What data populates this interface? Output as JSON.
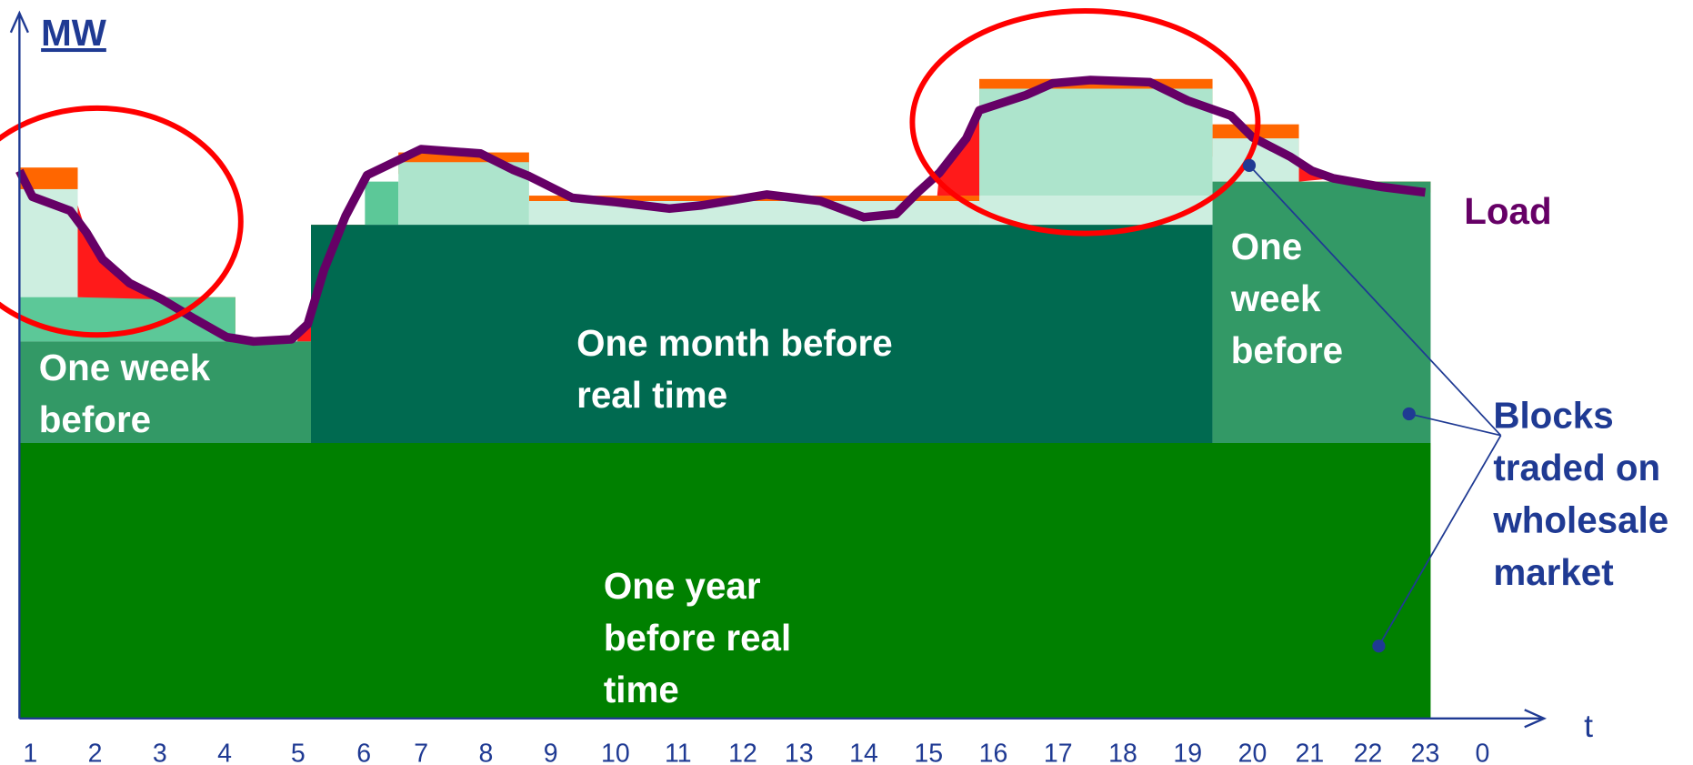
{
  "axis": {
    "y_label": "MW",
    "x_label": "t",
    "hours": [
      "1",
      "2",
      "3",
      "4",
      "5",
      "6",
      "7",
      "8",
      "9",
      "10",
      "11",
      "12",
      "13",
      "14",
      "15",
      "16",
      "17",
      "18",
      "19",
      "20",
      "21",
      "22",
      "23",
      "0"
    ]
  },
  "blocks": {
    "week_left": [
      "One week",
      "before"
    ],
    "month": [
      "One month before",
      "real time"
    ],
    "year": [
      "One year",
      "before real",
      "time"
    ],
    "week_right": [
      "One",
      "week",
      "before"
    ]
  },
  "load_label": "Load",
  "blocks_label": [
    "Blocks",
    "traded on",
    "wholesale",
    "market"
  ]
}
